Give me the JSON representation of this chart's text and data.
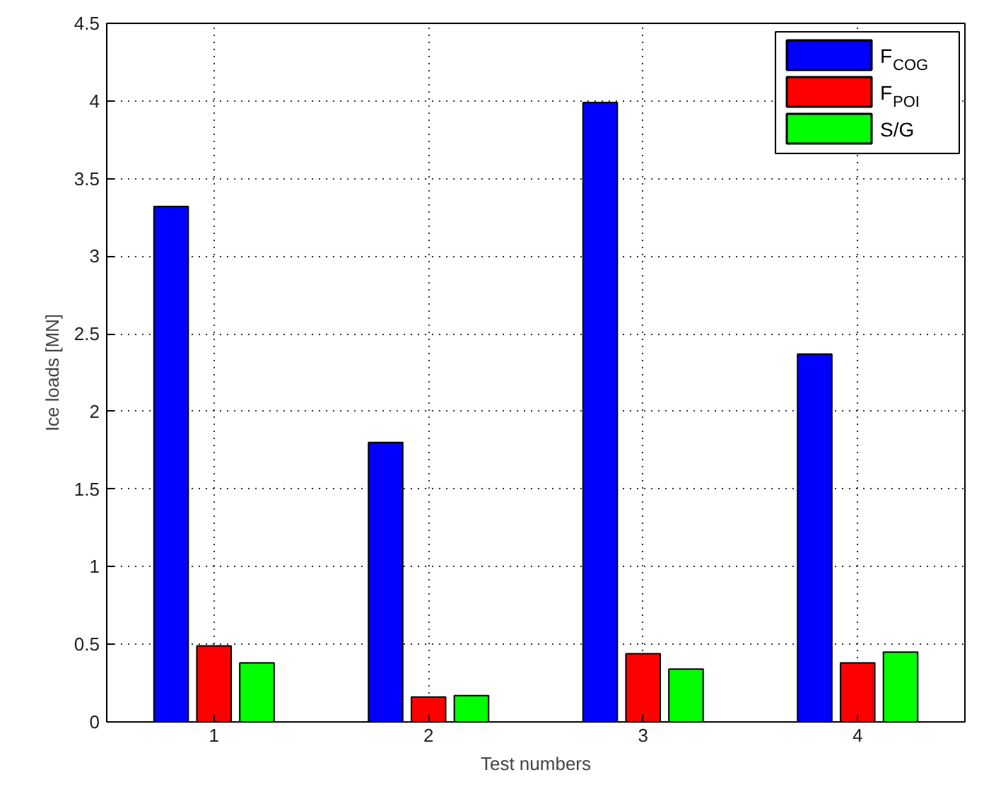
{
  "chart_data": {
    "type": "bar",
    "xlabel": "Test numbers",
    "ylabel": "Ice loads [MN]",
    "categories": [
      "1",
      "2",
      "3",
      "4"
    ],
    "series": [
      {
        "name": "F$_{COG}$",
        "color": "#0000ff",
        "values": [
          3.32,
          1.8,
          3.99,
          2.37
        ]
      },
      {
        "name": "F$_{POI}$",
        "color": "#ff0000",
        "values": [
          0.49,
          0.16,
          0.44,
          0.38
        ]
      },
      {
        "name": "S/G",
        "color": "#00ff00",
        "values": [
          0.38,
          0.17,
          0.34,
          0.45
        ]
      }
    ],
    "ylim": [
      0,
      4.5
    ],
    "yticks": [
      0,
      0.5,
      1,
      1.5,
      2,
      2.5,
      3,
      3.5,
      4,
      4.5
    ],
    "grid": true,
    "legend": "top right"
  }
}
